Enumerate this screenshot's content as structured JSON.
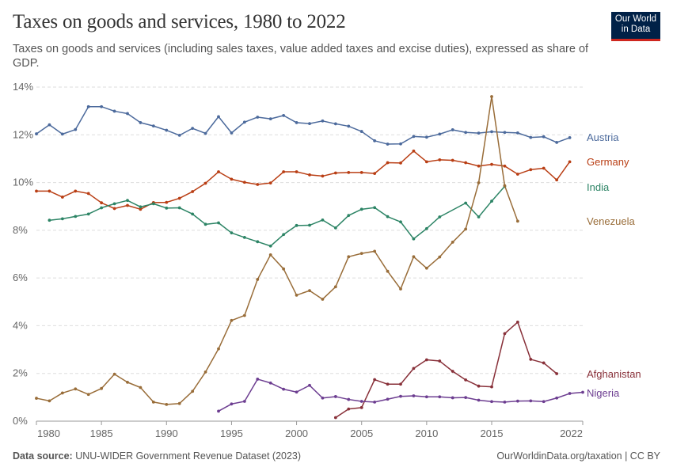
{
  "header": {
    "title": "Taxes on goods and services, 1980 to 2022",
    "subtitle": "Taxes on goods and services (including sales taxes, value added taxes and excise duties), expressed as share of GDP.",
    "logo_text": "Our World in Data"
  },
  "footer": {
    "source_label": "Data source:",
    "source": " UNU-WIDER Government Revenue Dataset (2023)",
    "credit": "OurWorldinData.org/taxation | CC BY"
  },
  "chart_data": {
    "type": "line",
    "title": "Taxes on goods and services, 1980 to 2022",
    "xlim": [
      1980,
      2022
    ],
    "ylim": [
      0,
      14
    ],
    "x_ticks": [
      "1980",
      "1985",
      "1990",
      "1995",
      "2000",
      "2005",
      "2010",
      "2015",
      "2022"
    ],
    "y_ticks": [
      "0%",
      "2%",
      "4%",
      "6%",
      "8%",
      "10%",
      "12%",
      "14%"
    ],
    "grid": "horizontal dashed",
    "legend": "inline-right",
    "series": [
      {
        "name": "Austria",
        "color": "#4c6a9c",
        "start": 1980,
        "values": [
          12.04,
          12.42,
          12.03,
          12.22,
          13.18,
          13.18,
          12.99,
          12.89,
          12.51,
          12.37,
          12.19,
          11.98,
          12.27,
          12.06,
          12.76,
          12.08,
          12.53,
          12.74,
          12.67,
          12.81,
          12.51,
          12.47,
          12.58,
          12.46,
          12.36,
          12.14,
          11.75,
          11.61,
          11.62,
          11.93,
          11.9,
          12.03,
          12.21,
          12.1,
          12.07,
          12.13,
          12.1,
          12.08,
          11.89,
          11.92,
          11.68,
          11.88
        ]
      },
      {
        "name": "Germany",
        "color": "#b93e14",
        "start": 1980,
        "values": [
          9.64,
          9.64,
          9.39,
          9.64,
          9.54,
          9.15,
          8.91,
          9.04,
          8.88,
          9.16,
          9.17,
          9.34,
          9.62,
          9.97,
          10.45,
          10.14,
          10.01,
          9.92,
          9.98,
          10.45,
          10.45,
          10.32,
          10.27,
          10.4,
          10.42,
          10.42,
          10.38,
          10.83,
          10.82,
          11.32,
          10.87,
          10.95,
          10.93,
          10.83,
          10.69,
          10.76,
          10.69,
          10.35,
          10.54,
          10.6,
          10.11,
          10.87
        ]
      },
      {
        "name": "India",
        "color": "#2c8465",
        "start": 1981,
        "values": [
          8.42,
          8.48,
          8.58,
          8.68,
          8.94,
          9.11,
          9.25,
          8.98,
          9.11,
          8.93,
          8.94,
          8.68,
          8.25,
          8.31,
          7.89,
          7.7,
          7.52,
          7.34,
          7.82,
          8.2,
          8.21,
          8.43,
          8.1,
          8.62,
          8.88,
          8.95,
          8.57,
          8.35,
          7.64,
          8.07,
          8.56,
          null,
          9.14,
          8.56,
          9.22,
          9.84
        ]
      },
      {
        "name": "Venezuela",
        "color": "#996d39",
        "start": 1980,
        "values": [
          0.96,
          0.85,
          1.18,
          1.35,
          1.12,
          1.37,
          1.97,
          1.63,
          1.41,
          0.8,
          0.7,
          0.74,
          1.25,
          2.06,
          3.03,
          4.22,
          4.43,
          5.94,
          6.97,
          6.38,
          5.28,
          5.47,
          5.11,
          5.63,
          6.89,
          7.03,
          7.12,
          6.28,
          5.54,
          6.89,
          6.41,
          6.88,
          7.5,
          8.05,
          9.99,
          13.6,
          9.87,
          8.38
        ]
      },
      {
        "name": "Afghanistan",
        "color": "#883039",
        "start": 2003,
        "values": [
          0.15,
          0.51,
          0.57,
          1.74,
          1.55,
          1.55,
          2.21,
          2.57,
          2.52,
          2.09,
          1.73,
          1.47,
          1.44,
          3.67,
          4.15,
          2.59,
          2.44,
          1.99
        ]
      },
      {
        "name": "Nigeria",
        "color": "#6d3e91",
        "start": 1994,
        "values": [
          0.42,
          0.72,
          0.83,
          1.76,
          1.6,
          1.34,
          1.22,
          1.5,
          0.97,
          1.03,
          0.91,
          0.83,
          0.8,
          0.92,
          1.04,
          1.06,
          1.02,
          1.02,
          0.98,
          0.99,
          0.88,
          0.82,
          0.8,
          0.84,
          0.85,
          0.82,
          0.97,
          1.16,
          1.21
        ]
      }
    ]
  }
}
